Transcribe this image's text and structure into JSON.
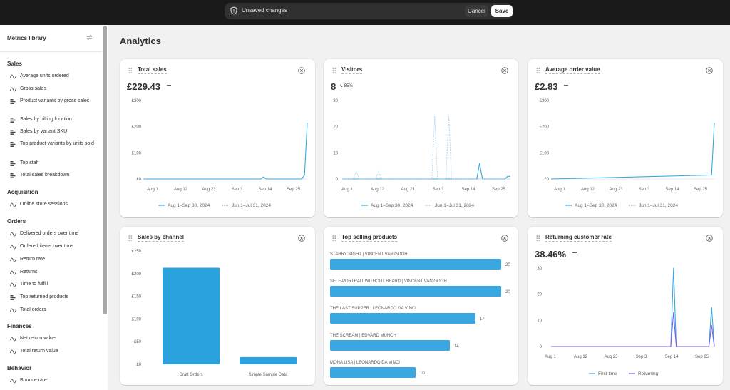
{
  "top_bar": {
    "message": "Unsaved changes",
    "cancel_label": "Cancel",
    "save_label": "Save"
  },
  "sidebar": {
    "title": "Metrics library",
    "sections": [
      {
        "label": "Sales",
        "items": [
          {
            "label": "Average units ordered",
            "icon": "line-chart-icon"
          },
          {
            "label": "Gross sales",
            "icon": "line-chart-icon"
          },
          {
            "label": "Product variants by gross sales",
            "icon": "bar-chart-icon"
          },
          {
            "label": "Sales by billing location",
            "icon": "bar-chart-icon"
          },
          {
            "label": "Sales by variant SKU",
            "icon": "bar-chart-icon"
          },
          {
            "label": "Top product variants by units sold",
            "icon": "bar-chart-icon"
          },
          {
            "label": "Top staff",
            "icon": "bar-chart-icon"
          },
          {
            "label": "Total sales breakdown",
            "icon": "bar-chart-icon"
          }
        ]
      },
      {
        "label": "Acquisition",
        "items": [
          {
            "label": "Online store sessions",
            "icon": "line-chart-icon"
          }
        ]
      },
      {
        "label": "Orders",
        "items": [
          {
            "label": "Delivered orders over time",
            "icon": "line-chart-icon"
          },
          {
            "label": "Ordered items over time",
            "icon": "line-chart-icon"
          },
          {
            "label": "Return rate",
            "icon": "line-chart-icon"
          },
          {
            "label": "Returns",
            "icon": "line-chart-icon"
          },
          {
            "label": "Time to fulfill",
            "icon": "line-chart-icon"
          },
          {
            "label": "Top returned products",
            "icon": "bar-chart-icon"
          },
          {
            "label": "Total orders",
            "icon": "line-chart-icon"
          }
        ]
      },
      {
        "label": "Finances",
        "items": [
          {
            "label": "Net return value",
            "icon": "line-chart-icon"
          },
          {
            "label": "Total return value",
            "icon": "line-chart-icon"
          }
        ]
      },
      {
        "label": "Behavior",
        "items": [
          {
            "label": "Bounce rate",
            "icon": "line-chart-icon"
          }
        ]
      }
    ]
  },
  "page": {
    "title": "Analytics"
  },
  "colors": {
    "primary_line": "#3ba7e0",
    "secondary_line": "#9bc9ea",
    "bar": "#2ba2dd",
    "returning": "#7b5ce6"
  },
  "cards": {
    "total_sales": {
      "title": "Total sales",
      "value": "£229.43"
    },
    "visitors": {
      "title": "Visitors",
      "value": "8",
      "change": "85%"
    },
    "aov": {
      "title": "Average order value",
      "value": "£2.83"
    },
    "sales_by_channel": {
      "title": "Sales by channel"
    },
    "top_selling": {
      "title": "Top selling products"
    },
    "returning_rate": {
      "title": "Returning customer rate",
      "value": "38.46%"
    }
  },
  "chart_data": [
    {
      "id": "total_sales",
      "type": "line",
      "x_ticks": [
        "Aug 1",
        "Aug 12",
        "Aug 23",
        "Sep 3",
        "Sep 14",
        "Sep 25"
      ],
      "y_ticks": [
        "£300",
        "£200",
        "£100",
        "£0"
      ],
      "ylim": [
        0,
        300
      ],
      "series": [
        {
          "name": "Aug 1–Sep 30, 2024",
          "style": "solid",
          "points": [
            [
              0,
              0
            ],
            [
              43,
              0
            ],
            [
              44,
              8
            ],
            [
              45,
              0
            ],
            [
              58,
              0
            ],
            [
              59,
              15
            ],
            [
              60,
              215
            ]
          ]
        },
        {
          "name": "Jun 1–Jul 31, 2024",
          "style": "dotted",
          "points": []
        }
      ]
    },
    {
      "id": "visitors",
      "type": "line",
      "x_ticks": [
        "Aug 1",
        "Aug 12",
        "Aug 23",
        "Sep 3",
        "Sep 14",
        "Sep 25"
      ],
      "y_ticks": [
        "30",
        "20",
        "10",
        "0"
      ],
      "ylim": [
        0,
        30
      ],
      "series": [
        {
          "name": "Aug 1–Sep 30, 2024",
          "style": "solid",
          "points": [
            [
              0,
              0
            ],
            [
              48,
              0
            ],
            [
              49,
              6
            ],
            [
              50,
              0
            ],
            [
              58,
              0
            ],
            [
              59,
              1
            ],
            [
              60,
              1
            ]
          ]
        },
        {
          "name": "Jun 1–Jul 31, 2024",
          "style": "dotted",
          "points": [
            [
              0,
              0
            ],
            [
              4,
              0
            ],
            [
              5,
              3
            ],
            [
              6,
              0
            ],
            [
              12,
              0
            ],
            [
              13,
              3
            ],
            [
              14,
              0
            ],
            [
              32,
              0
            ],
            [
              33,
              24
            ],
            [
              34,
              0
            ],
            [
              37,
              0
            ],
            [
              38,
              24
            ],
            [
              39,
              0
            ],
            [
              60,
              0
            ]
          ]
        }
      ]
    },
    {
      "id": "aov",
      "type": "line",
      "x_ticks": [
        "Aug 1",
        "Aug 12",
        "Aug 23",
        "Sep 3",
        "Sep 14",
        "Sep 25"
      ],
      "y_ticks": [
        "£300",
        "£200",
        "£100",
        "£0"
      ],
      "ylim": [
        0,
        300
      ],
      "series": [
        {
          "name": "Aug 1–Sep 30, 2024",
          "style": "solid",
          "points": [
            [
              0,
              0
            ],
            [
              59,
              15
            ],
            [
              60,
              215
            ]
          ]
        },
        {
          "name": "Jun 1–Jul 31, 2024",
          "style": "dotted",
          "points": []
        }
      ]
    },
    {
      "id": "sales_by_channel",
      "type": "bar",
      "categories": [
        "Draft Orders",
        "Simple Sample Data"
      ],
      "values": [
        213,
        16
      ],
      "y_ticks": [
        "£250",
        "£200",
        "£150",
        "£100",
        "£50",
        "£0"
      ],
      "ylim": [
        0,
        250
      ]
    },
    {
      "id": "top_selling",
      "type": "bar",
      "orientation": "horizontal",
      "categories": [
        "STARRY NIGHT | VINCENT VAN GOGH",
        "SELF-PORTRAIT WITHOUT BEARD | VINCENT VAN GOGH",
        "THE LAST SUPPER | LEONARDO DA VINCI",
        "THE SCREAM | EDVARD MUNCH",
        "MONA LISA | LEONARDO DA VINCI"
      ],
      "values": [
        20,
        20,
        17,
        14,
        10
      ],
      "xlim": [
        0,
        20
      ]
    },
    {
      "id": "returning_rate",
      "type": "line",
      "x_ticks": [
        "Aug 1",
        "Aug 12",
        "Aug 23",
        "Sep 3",
        "Sep 14",
        "Sep 25"
      ],
      "y_ticks": [
        "30",
        "20",
        "10",
        "0"
      ],
      "ylim": [
        0,
        30
      ],
      "series": [
        {
          "name": "First time",
          "style": "solid",
          "points": [
            [
              0,
              0
            ],
            [
              44,
              0
            ],
            [
              45,
              30
            ],
            [
              46,
              0
            ],
            [
              58,
              0
            ],
            [
              59,
              15
            ],
            [
              60,
              0
            ]
          ]
        },
        {
          "name": "Returning",
          "style": "solid",
          "points": [
            [
              0,
              0
            ],
            [
              44,
              0
            ],
            [
              45,
              13
            ],
            [
              46,
              0
            ],
            [
              58,
              0
            ],
            [
              59,
              8
            ],
            [
              60,
              0
            ]
          ]
        }
      ]
    }
  ]
}
